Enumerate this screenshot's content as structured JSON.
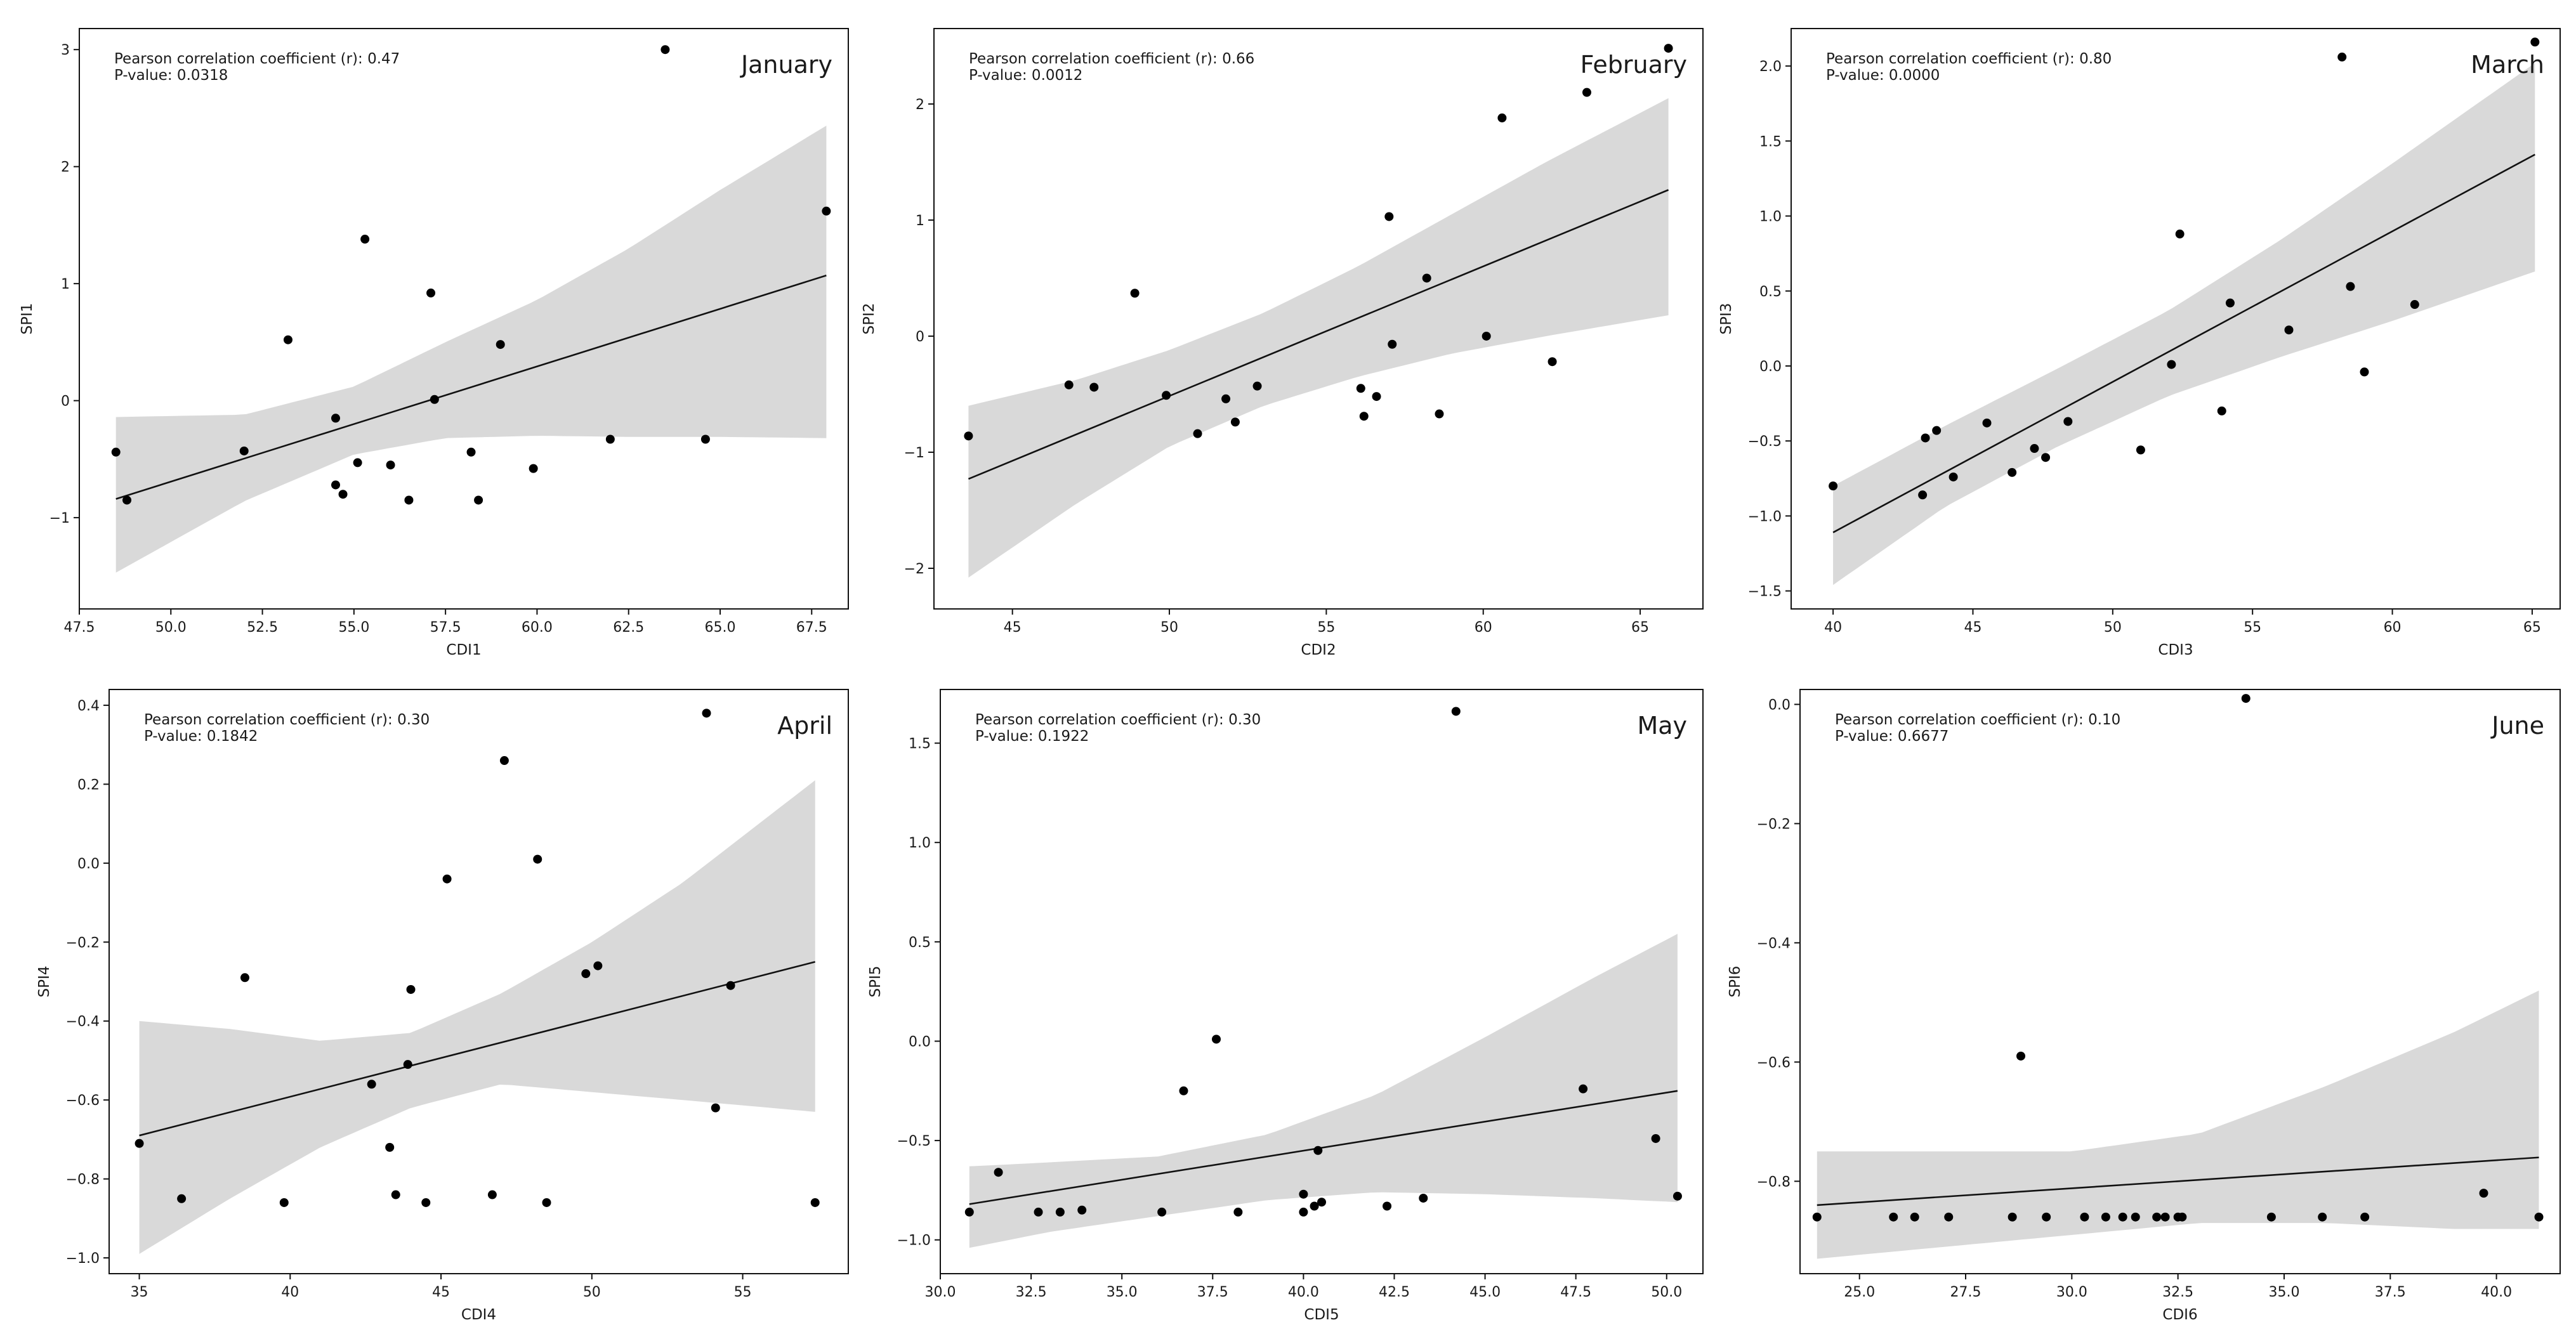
{
  "figure_title": "",
  "chart_data": [
    {
      "type": "scatter",
      "title": "January",
      "xlabel": "CDI1",
      "ylabel": "SPI1",
      "stats": {
        "r_text": "Pearson correlation coefficient (r): 0.47",
        "p_text": "P-value: 0.0318"
      },
      "xlim": [
        47.5,
        68.5
      ],
      "ylim": [
        -1.78,
        3.18
      ],
      "xticks": [
        47.5,
        50.0,
        52.5,
        55.0,
        57.5,
        60.0,
        62.5,
        65.0,
        67.5
      ],
      "xtick_labels": [
        "47.5",
        "50.0",
        "52.5",
        "55.0",
        "57.5",
        "60.0",
        "62.5",
        "65.0",
        "67.5"
      ],
      "yticks": [
        -1,
        0,
        1,
        2,
        3
      ],
      "ytick_labels": [
        "−1",
        "0",
        "1",
        "2",
        "3"
      ],
      "points": [
        [
          48.5,
          -0.44
        ],
        [
          48.8,
          -0.85
        ],
        [
          52.0,
          -0.43
        ],
        [
          53.2,
          0.52
        ],
        [
          54.5,
          -0.15
        ],
        [
          54.5,
          -0.72
        ],
        [
          54.7,
          -0.8
        ],
        [
          55.1,
          -0.53
        ],
        [
          55.3,
          1.38
        ],
        [
          56.0,
          -0.55
        ],
        [
          56.5,
          -0.85
        ],
        [
          57.1,
          0.92
        ],
        [
          57.2,
          0.01
        ],
        [
          58.2,
          -0.44
        ],
        [
          58.4,
          -0.85
        ],
        [
          59.0,
          0.48
        ],
        [
          59.9,
          -0.58
        ],
        [
          62.0,
          -0.33
        ],
        [
          63.5,
          3.0
        ],
        [
          64.6,
          -0.33
        ],
        [
          67.9,
          1.62
        ]
      ],
      "fit": {
        "x": [
          48.5,
          67.9
        ],
        "y": [
          -0.84,
          1.07
        ]
      },
      "band": {
        "x": [
          48.5,
          52.0,
          55.0,
          57.5,
          60.0,
          62.5,
          65.0,
          67.9
        ],
        "upper": [
          -0.14,
          -0.12,
          0.12,
          0.5,
          0.86,
          1.3,
          1.8,
          2.35
        ],
        "lower": [
          -1.47,
          -0.86,
          -0.46,
          -0.32,
          -0.3,
          -0.31,
          -0.31,
          -0.32
        ]
      }
    },
    {
      "type": "scatter",
      "title": "February",
      "xlabel": "CDI2",
      "ylabel": "SPI2",
      "stats": {
        "r_text": "Pearson correlation coefficient (r): 0.66",
        "p_text": "P-value: 0.0012"
      },
      "xlim": [
        42.5,
        67.0
      ],
      "ylim": [
        -2.35,
        2.65
      ],
      "xticks": [
        45,
        50,
        55,
        60,
        65
      ],
      "xtick_labels": [
        "45",
        "50",
        "55",
        "60",
        "65"
      ],
      "yticks": [
        -2,
        -1,
        0,
        1,
        2
      ],
      "ytick_labels": [
        "−2",
        "−1",
        "0",
        "1",
        "2"
      ],
      "points": [
        [
          43.6,
          -0.86
        ],
        [
          46.8,
          -0.42
        ],
        [
          47.6,
          -0.44
        ],
        [
          48.9,
          0.37
        ],
        [
          49.9,
          -0.51
        ],
        [
          50.9,
          -0.84
        ],
        [
          51.8,
          -0.54
        ],
        [
          52.1,
          -0.74
        ],
        [
          52.8,
          -0.43
        ],
        [
          56.1,
          -0.45
        ],
        [
          56.2,
          -0.69
        ],
        [
          56.6,
          -0.52
        ],
        [
          57.0,
          1.03
        ],
        [
          57.1,
          -0.07
        ],
        [
          58.2,
          0.5
        ],
        [
          58.6,
          -0.67
        ],
        [
          60.1,
          0.0
        ],
        [
          60.6,
          1.88
        ],
        [
          62.2,
          -0.22
        ],
        [
          63.3,
          2.1
        ],
        [
          65.9,
          2.48
        ]
      ],
      "fit": {
        "x": [
          43.6,
          65.9
        ],
        "y": [
          -1.23,
          1.26
        ]
      },
      "band": {
        "x": [
          43.6,
          47.0,
          50.0,
          53.0,
          56.0,
          59.0,
          62.0,
          65.9
        ],
        "upper": [
          -0.6,
          -0.38,
          -0.12,
          0.2,
          0.6,
          1.05,
          1.5,
          2.05
        ],
        "lower": [
          -2.08,
          -1.45,
          -0.95,
          -0.6,
          -0.35,
          -0.15,
          0.0,
          0.18
        ]
      }
    },
    {
      "type": "scatter",
      "title": "March",
      "xlabel": "CDI3",
      "ylabel": "SPI3",
      "stats": {
        "r_text": "Pearson correlation coefficient (r): 0.80",
        "p_text": "P-value: 0.0000"
      },
      "xlim": [
        38.5,
        66.0
      ],
      "ylim": [
        -1.62,
        2.25
      ],
      "xticks": [
        40,
        45,
        50,
        55,
        60,
        65
      ],
      "xtick_labels": [
        "40",
        "45",
        "50",
        "55",
        "60",
        "65"
      ],
      "yticks": [
        -1.5,
        -1.0,
        -0.5,
        0.0,
        0.5,
        1.0,
        1.5,
        2.0
      ],
      "ytick_labels": [
        "−1.5",
        "−1.0",
        "−0.5",
        "0.0",
        "0.5",
        "1.0",
        "1.5",
        "2.0"
      ],
      "points": [
        [
          40.0,
          -0.8
        ],
        [
          43.2,
          -0.86
        ],
        [
          43.3,
          -0.48
        ],
        [
          43.7,
          -0.43
        ],
        [
          44.3,
          -0.74
        ],
        [
          45.5,
          -0.38
        ],
        [
          46.4,
          -0.71
        ],
        [
          47.2,
          -0.55
        ],
        [
          47.6,
          -0.61
        ],
        [
          48.4,
          -0.37
        ],
        [
          51.0,
          -0.56
        ],
        [
          52.1,
          0.01
        ],
        [
          52.4,
          0.88
        ],
        [
          53.9,
          -0.3
        ],
        [
          54.2,
          0.42
        ],
        [
          56.3,
          0.24
        ],
        [
          58.2,
          2.06
        ],
        [
          58.5,
          0.53
        ],
        [
          59.0,
          -0.04
        ],
        [
          60.8,
          0.41
        ],
        [
          65.1,
          2.16
        ]
      ],
      "fit": {
        "x": [
          40.0,
          65.1
        ],
        "y": [
          -1.11,
          1.41
        ]
      },
      "band": {
        "x": [
          40.0,
          44.0,
          48.0,
          52.0,
          56.0,
          60.0,
          65.1
        ],
        "upper": [
          -0.8,
          -0.4,
          -0.02,
          0.37,
          0.84,
          1.35,
          2.02
        ],
        "lower": [
          -1.46,
          -0.94,
          -0.54,
          -0.2,
          0.06,
          0.3,
          0.63
        ]
      }
    },
    {
      "type": "scatter",
      "title": "April",
      "xlabel": "CDI4",
      "ylabel": "SPI4",
      "stats": {
        "r_text": "Pearson correlation coefficient (r): 0.30",
        "p_text": "P-value: 0.1842"
      },
      "xlim": [
        34.0,
        58.5
      ],
      "ylim": [
        -1.04,
        0.44
      ],
      "xticks": [
        35,
        40,
        45,
        50,
        55
      ],
      "xtick_labels": [
        "35",
        "40",
        "45",
        "50",
        "55"
      ],
      "yticks": [
        -1.0,
        -0.8,
        -0.6,
        -0.4,
        -0.2,
        0.0,
        0.2,
        0.4
      ],
      "ytick_labels": [
        "−1.0",
        "−0.8",
        "−0.6",
        "−0.4",
        "−0.2",
        "0.0",
        "0.2",
        "0.4"
      ],
      "points": [
        [
          35.0,
          -0.71
        ],
        [
          36.4,
          -0.85
        ],
        [
          38.5,
          -0.29
        ],
        [
          39.8,
          -0.86
        ],
        [
          42.7,
          -0.56
        ],
        [
          43.3,
          -0.72
        ],
        [
          43.5,
          -0.84
        ],
        [
          43.9,
          -0.51
        ],
        [
          44.0,
          -0.32
        ],
        [
          44.5,
          -0.86
        ],
        [
          45.2,
          -0.04
        ],
        [
          46.7,
          -0.84
        ],
        [
          47.1,
          0.26
        ],
        [
          48.2,
          0.01
        ],
        [
          48.5,
          -0.86
        ],
        [
          49.8,
          -0.28
        ],
        [
          50.2,
          -0.26
        ],
        [
          53.8,
          0.38
        ],
        [
          54.1,
          -0.62
        ],
        [
          54.6,
          -0.31
        ],
        [
          57.4,
          -0.86
        ]
      ],
      "fit": {
        "x": [
          35.0,
          57.4
        ],
        "y": [
          -0.69,
          -0.25
        ]
      },
      "band": {
        "x": [
          35.0,
          38.0,
          41.0,
          44.0,
          47.0,
          50.0,
          53.0,
          57.4
        ],
        "upper": [
          -0.4,
          -0.42,
          -0.45,
          -0.43,
          -0.33,
          -0.2,
          -0.05,
          0.21
        ],
        "lower": [
          -0.99,
          -0.85,
          -0.72,
          -0.62,
          -0.56,
          -0.58,
          -0.6,
          -0.63
        ]
      }
    },
    {
      "type": "scatter",
      "title": "May",
      "xlabel": "CDI5",
      "ylabel": "SPI5",
      "stats": {
        "r_text": "Pearson correlation coefficient (r): 0.30",
        "p_text": "P-value: 0.1922"
      },
      "xlim": [
        30.0,
        51.0
      ],
      "ylim": [
        -1.17,
        1.77
      ],
      "xticks": [
        30.0,
        32.5,
        35.0,
        37.5,
        40.0,
        42.5,
        45.0,
        47.5,
        50.0
      ],
      "xtick_labels": [
        "30.0",
        "32.5",
        "35.0",
        "37.5",
        "40.0",
        "42.5",
        "45.0",
        "47.5",
        "50.0"
      ],
      "yticks": [
        -1.0,
        -0.5,
        0.0,
        0.5,
        1.0,
        1.5
      ],
      "ytick_labels": [
        "−1.0",
        "−0.5",
        "0.0",
        "0.5",
        "1.0",
        "1.5"
      ],
      "points": [
        [
          30.8,
          -0.86
        ],
        [
          31.6,
          -0.66
        ],
        [
          32.7,
          -0.86
        ],
        [
          33.3,
          -0.86
        ],
        [
          33.9,
          -0.85
        ],
        [
          36.1,
          -0.86
        ],
        [
          36.7,
          -0.25
        ],
        [
          37.6,
          0.01
        ],
        [
          38.2,
          -0.86
        ],
        [
          40.0,
          -0.77
        ],
        [
          40.0,
          -0.86
        ],
        [
          40.3,
          -0.83
        ],
        [
          40.4,
          -0.55
        ],
        [
          40.5,
          -0.81
        ],
        [
          42.3,
          -0.83
        ],
        [
          43.3,
          -0.79
        ],
        [
          44.2,
          1.66
        ],
        [
          47.7,
          -0.24
        ],
        [
          49.7,
          -0.49
        ],
        [
          50.3,
          -0.78
        ]
      ],
      "fit": {
        "x": [
          30.8,
          50.3
        ],
        "y": [
          -0.82,
          -0.25
        ]
      },
      "band": {
        "x": [
          30.8,
          33.0,
          36.0,
          39.0,
          42.0,
          45.0,
          48.0,
          50.3
        ],
        "upper": [
          -0.63,
          -0.61,
          -0.58,
          -0.47,
          -0.27,
          0.02,
          0.32,
          0.54
        ],
        "lower": [
          -1.04,
          -0.96,
          -0.88,
          -0.8,
          -0.76,
          -0.77,
          -0.79,
          -0.81
        ]
      }
    },
    {
      "type": "scatter",
      "title": "June",
      "xlabel": "CDI6",
      "ylabel": "SPI6",
      "stats": {
        "r_text": "Pearson correlation coefficient (r): 0.10",
        "p_text": "P-value: 0.6677"
      },
      "xlim": [
        23.6,
        41.5
      ],
      "ylim": [
        -0.955,
        0.025
      ],
      "xticks": [
        25.0,
        27.5,
        30.0,
        32.5,
        35.0,
        37.5,
        40.0
      ],
      "xtick_labels": [
        "25.0",
        "27.5",
        "30.0",
        "32.5",
        "35.0",
        "37.5",
        "40.0"
      ],
      "yticks": [
        -0.8,
        -0.6,
        -0.4,
        -0.2,
        0.0
      ],
      "ytick_labels": [
        "−0.8",
        "−0.6",
        "−0.4",
        "−0.2",
        "0.0"
      ],
      "points": [
        [
          24.0,
          -0.86
        ],
        [
          25.8,
          -0.86
        ],
        [
          26.3,
          -0.86
        ],
        [
          27.1,
          -0.86
        ],
        [
          28.6,
          -0.86
        ],
        [
          28.8,
          -0.59
        ],
        [
          29.4,
          -0.86
        ],
        [
          30.3,
          -0.86
        ],
        [
          30.8,
          -0.86
        ],
        [
          31.2,
          -0.86
        ],
        [
          31.5,
          -0.86
        ],
        [
          32.0,
          -0.86
        ],
        [
          32.2,
          -0.86
        ],
        [
          32.5,
          -0.86
        ],
        [
          32.6,
          -0.86
        ],
        [
          34.1,
          0.01
        ],
        [
          34.7,
          -0.86
        ],
        [
          35.9,
          -0.86
        ],
        [
          36.9,
          -0.86
        ],
        [
          39.7,
          -0.82
        ],
        [
          41.0,
          -0.86
        ]
      ],
      "fit": {
        "x": [
          24.0,
          41.0
        ],
        "y": [
          -0.84,
          -0.76
        ]
      },
      "band": {
        "x": [
          24.0,
          27.0,
          30.0,
          33.0,
          36.0,
          39.0,
          41.0
        ],
        "upper": [
          -0.75,
          -0.75,
          -0.75,
          -0.72,
          -0.64,
          -0.55,
          -0.48
        ],
        "lower": [
          -0.93,
          -0.91,
          -0.89,
          -0.87,
          -0.87,
          -0.88,
          -0.88
        ]
      }
    }
  ]
}
